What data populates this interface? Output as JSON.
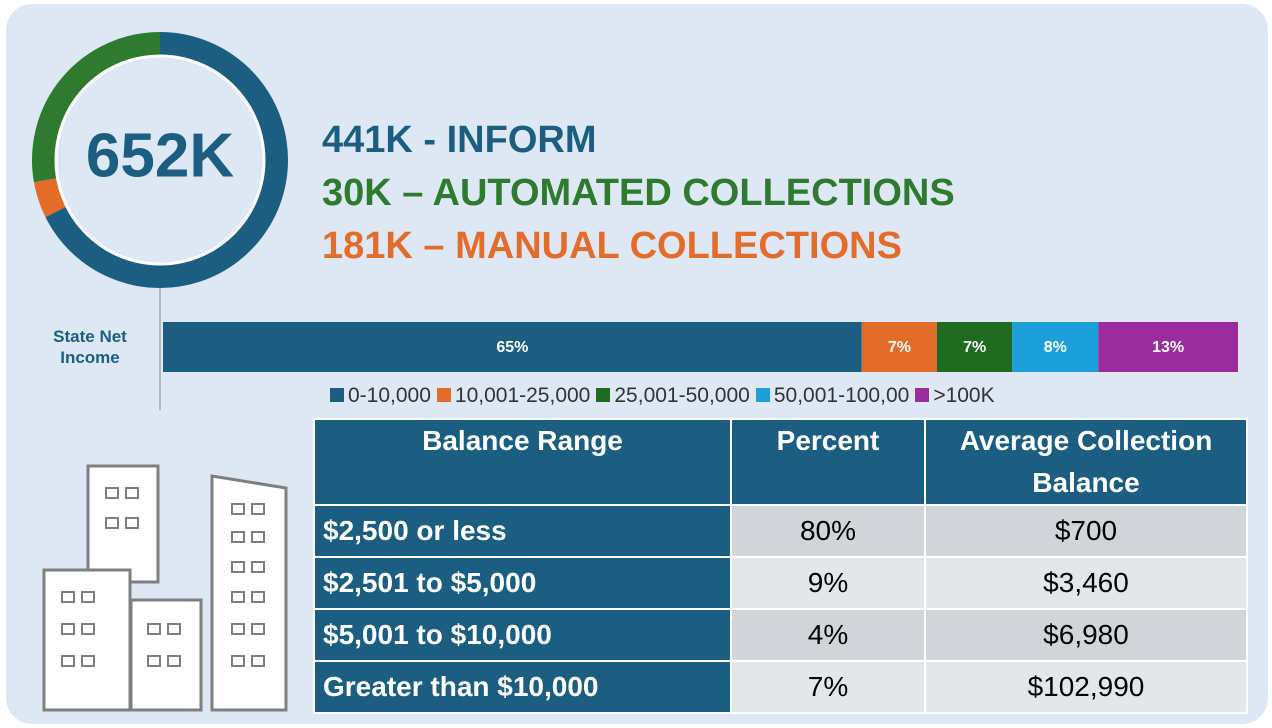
{
  "chart_data": [
    {
      "type": "donut",
      "center_label": "652K",
      "values": [
        441,
        30,
        181
      ],
      "colors": [
        "#1b5e82",
        "#e46c2b",
        "#2e7a2e"
      ]
    },
    {
      "type": "bar",
      "orientation": "horizontal",
      "categories": [
        "State Net Income"
      ],
      "xlim": [
        0,
        100
      ],
      "series": [
        {
          "name": "0-10,000",
          "color": "#1b5e82",
          "values": [
            65
          ],
          "value_labels": [
            "65%"
          ]
        },
        {
          "name": "10,001-25,000",
          "color": "#e46c2b",
          "values": [
            7
          ],
          "value_labels": [
            "7%"
          ]
        },
        {
          "name": "25,001-50,000",
          "color": "#1f6b1f",
          "values": [
            7
          ],
          "value_labels": [
            "7%"
          ]
        },
        {
          "name": "50,001-100,00",
          "color": "#1ba0dc",
          "values": [
            8
          ],
          "value_labels": [
            "8%"
          ]
        },
        {
          "name": ">100K",
          "color": "#9b2c9e",
          "values": [
            13
          ],
          "value_labels": [
            "13%"
          ]
        }
      ]
    }
  ],
  "headlines": [
    {
      "text": "441K - INFORM",
      "color": "#1b5e82"
    },
    {
      "text": "30K – AUTOMATED COLLECTIONS",
      "color": "#2e7a2e"
    },
    {
      "text": "181K – MANUAL COLLECTIONS",
      "color": "#e46c2b"
    }
  ],
  "table": {
    "header": [
      "Balance Range",
      "Percent",
      "Average Collection Balance"
    ],
    "rows": [
      [
        "$2,500 or less",
        "80%",
        "$700"
      ],
      [
        "$2,501 to $5,000",
        "9%",
        "$3,460"
      ],
      [
        "$5,001 to $10,000",
        "4%",
        "$6,980"
      ],
      [
        "Greater than $10,000",
        "7%",
        "$102,990"
      ]
    ]
  }
}
